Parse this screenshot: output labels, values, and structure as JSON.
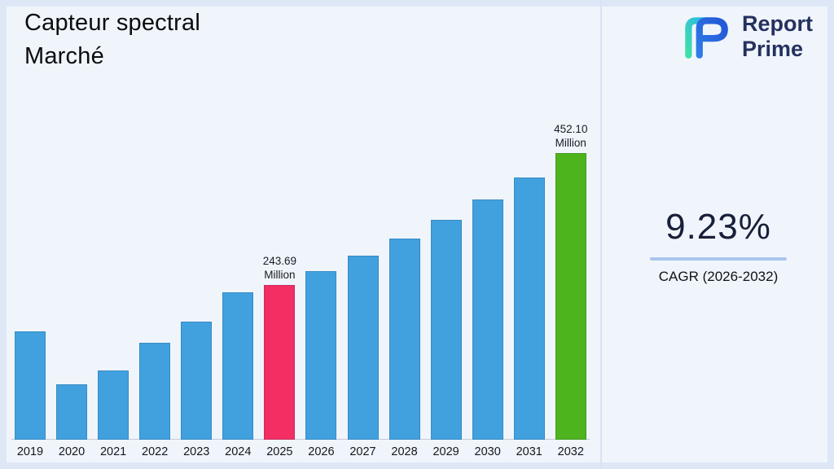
{
  "page": {
    "title_line1": "Capteur spectral",
    "title_line2": "Marché"
  },
  "brand": {
    "name_line1": "Report",
    "name_line2": "Prime"
  },
  "stats": {
    "cagr_value": "9.23%",
    "cagr_label": "CAGR (2026-2032)"
  },
  "chart_data": {
    "type": "bar",
    "title": "Capteur spectral Marché",
    "categories": [
      "2019",
      "2020",
      "2021",
      "2022",
      "2023",
      "2024",
      "2025",
      "2026",
      "2027",
      "2028",
      "2029",
      "2030",
      "2031",
      "2032"
    ],
    "values": [
      171,
      87,
      109,
      153,
      186,
      233,
      243.69,
      266.2,
      290.8,
      317.7,
      347.0,
      379.1,
      414.1,
      452.1
    ],
    "unit": "Million",
    "ylim": [
      0,
      460
    ],
    "grid": false,
    "legend": "none",
    "annotations": [
      {
        "category": "2025",
        "lines": [
          "243.69",
          "Million"
        ]
      },
      {
        "category": "2032",
        "lines": [
          "452.10",
          "Million"
        ]
      }
    ],
    "colors": {
      "default": "#41A1DF",
      "2025": "#F22E63",
      "2032": "#4EB41E"
    }
  }
}
